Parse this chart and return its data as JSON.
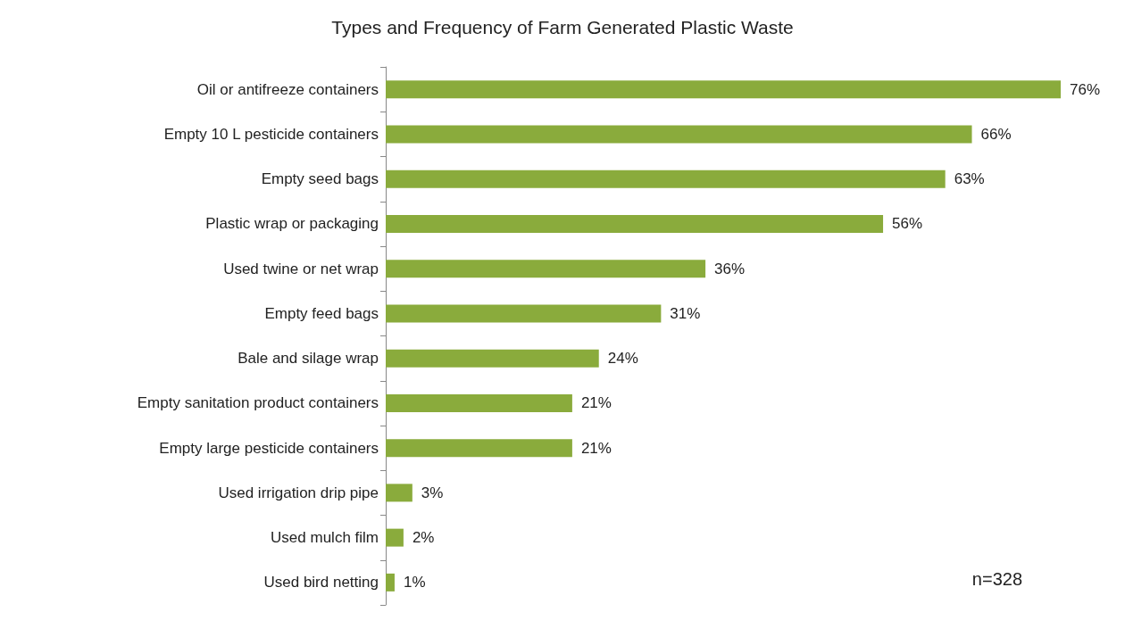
{
  "chart_data": {
    "type": "bar",
    "orientation": "horizontal",
    "title": "Types and Frequency of Farm Generated Plastic Waste",
    "categories": [
      "Oil or antifreeze containers",
      "Empty 10 L pesticide containers",
      "Empty seed bags",
      "Plastic wrap or packaging",
      "Used twine or net wrap",
      "Empty feed bags",
      "Bale and silage wrap",
      "Empty sanitation product containers",
      "Empty large pesticide containers",
      "Used irrigation drip pipe",
      "Used mulch film",
      "Used bird netting"
    ],
    "values": [
      76,
      66,
      63,
      56,
      36,
      31,
      24,
      21,
      21,
      3,
      2,
      1
    ],
    "value_labels": [
      "76%",
      "66%",
      "63%",
      "56%",
      "36%",
      "31%",
      "24%",
      "21%",
      "21%",
      "3%",
      "2%",
      "1%"
    ],
    "color": "#8aab3c",
    "tick_labels": "y",
    "grid": false,
    "annotations": [
      "n=328"
    ]
  }
}
